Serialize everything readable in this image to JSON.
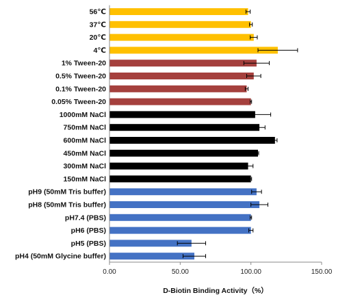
{
  "chart_data": {
    "type": "bar",
    "orientation": "horizontal",
    "categories": [
      "56℃",
      "37℃",
      "20℃",
      "4℃",
      "1% Tween-20",
      "0.5% Tween-20",
      "0.1% Tween-20",
      "0.05% Tween-20",
      "1000mM NaCl",
      "750mM NaCl",
      "600mM NaCl",
      "450mM NaCl",
      "300mM NaCl",
      "150mM NaCl",
      "pH9 (50mM Tris buffer)",
      "pH8 (50mM Tris buffer)",
      "pH7.4 (PBS)",
      "pH6 (PBS)",
      "pH5 (PBS)",
      "pH4 (50mM Glycine buffer)"
    ],
    "values": [
      98,
      100,
      102,
      119,
      104,
      102,
      97,
      100,
      103,
      106,
      117,
      105,
      98,
      100,
      104,
      106,
      100,
      100,
      58,
      60
    ],
    "errors": [
      1.5,
      1,
      2.5,
      14,
      9,
      5,
      1,
      0.5,
      11,
      4,
      1.5,
      0.5,
      3.5,
      0.5,
      3.5,
      6,
      0.5,
      1.5,
      10,
      8
    ],
    "bar_colors": [
      "#FFC000",
      "#FFC000",
      "#FFC000",
      "#FFC000",
      "#A5403D",
      "#A5403D",
      "#A5403D",
      "#A5403D",
      "#000000",
      "#000000",
      "#000000",
      "#000000",
      "#000000",
      "#000000",
      "#4472C4",
      "#4472C4",
      "#4472C4",
      "#4472C4",
      "#4472C4",
      "#4472C4"
    ],
    "error_bar_color": "#000000",
    "x_ticks": [
      "0.00",
      "50.00",
      "100.00",
      "150.00"
    ],
    "xlim": [
      0,
      150
    ],
    "xlabel": "D-Biotin Binding Activity（%）",
    "grid": false,
    "legend": "none"
  }
}
